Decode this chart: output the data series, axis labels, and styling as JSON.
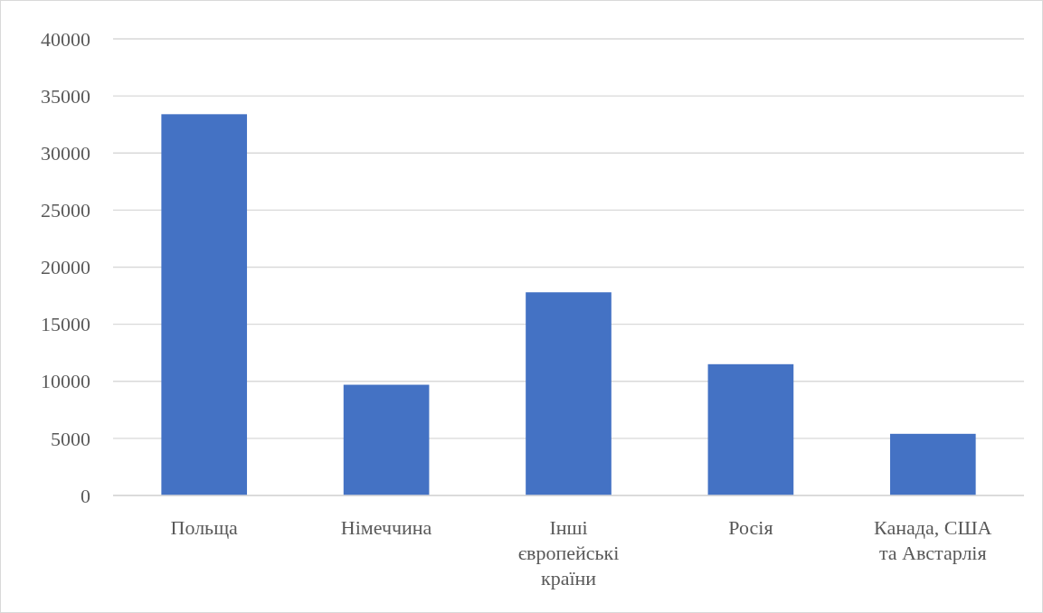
{
  "chart_data": {
    "type": "bar",
    "categories": [
      "Польща",
      "Німеччина",
      "Інші європейські країни",
      "Росія",
      "Канада, США та Австарлія"
    ],
    "values": [
      33400,
      9700,
      17800,
      11500,
      5400
    ],
    "color": "#4472c4",
    "ylim": [
      0,
      40000
    ],
    "yticks": [
      0,
      5000,
      10000,
      15000,
      20000,
      25000,
      30000,
      35000,
      40000
    ],
    "grid": "y"
  }
}
